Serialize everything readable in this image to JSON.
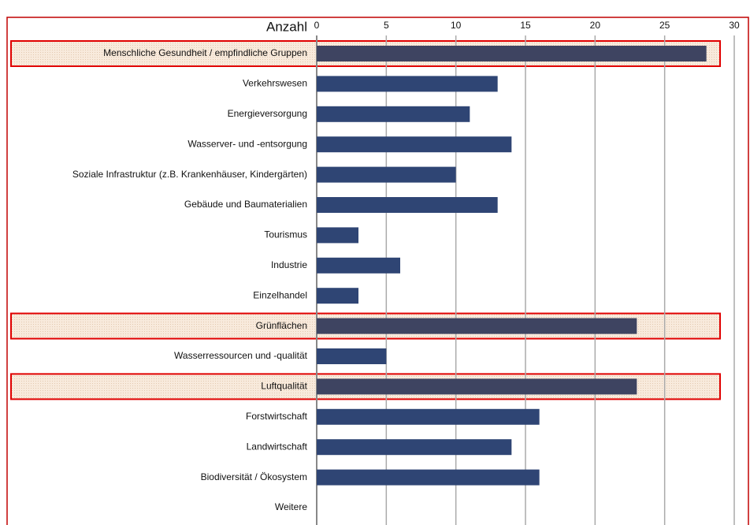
{
  "chart_data": {
    "type": "barh",
    "xlabel": "Anzahl",
    "categories": [
      "Menschliche Gesundheit / empfindliche Gruppen",
      "Verkehrswesen",
      "Energieversorgung",
      "Wasserver- und -entsorgung",
      "Soziale Infrastruktur (z.B. Krankenhäuser, Kindergärten)",
      "Gebäude und Baumaterialien",
      "Tourismus",
      "Industrie",
      "Einzelhandel",
      "Grünflächen",
      "Wasserressourcen und -qualität",
      "Luftqualität",
      "Forstwirtschaft",
      "Landwirtschaft",
      "Biodiversität / Ökosystem",
      "Weitere"
    ],
    "values": [
      28,
      13,
      11,
      14,
      10,
      13,
      3,
      6,
      3,
      23,
      5,
      23,
      16,
      14,
      16,
      0
    ],
    "color": "#2f4574",
    "highlight_indices": [
      0,
      9,
      11
    ],
    "highlight_color": "#3e4461",
    "xlim": [
      0,
      30
    ],
    "xticks": [
      0,
      5,
      10,
      15,
      20,
      25,
      30
    ],
    "grid": true
  }
}
